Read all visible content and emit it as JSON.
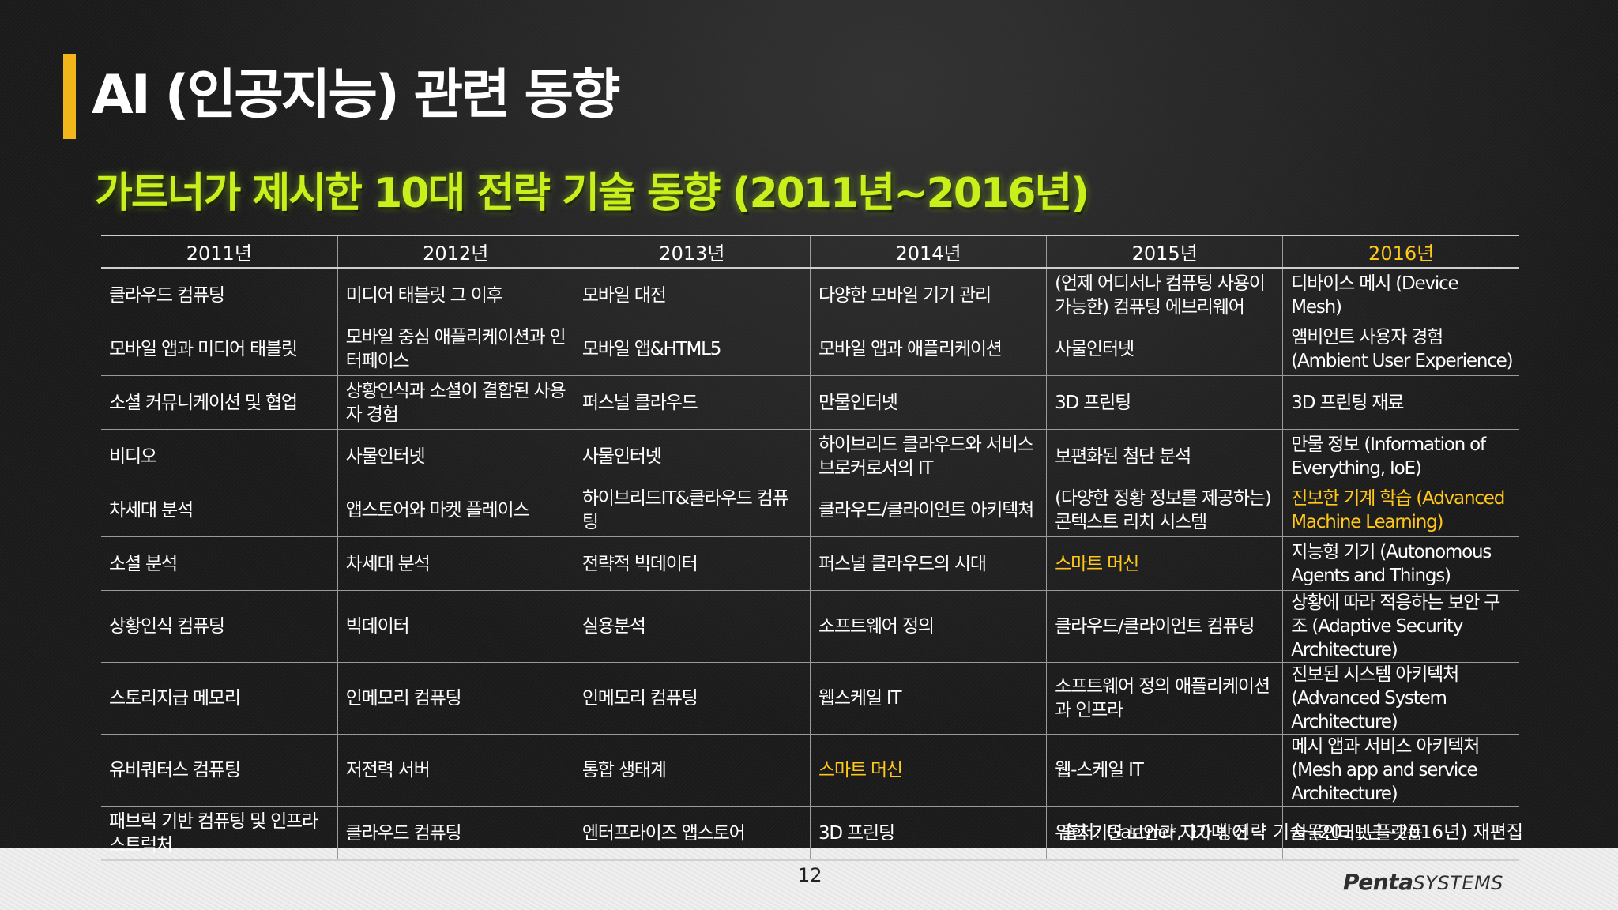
{
  "title": "AI (인공지능) 관련 동향",
  "subtitle": "가트너가 제시한 10대 전략 기술 동향 (2011년~2016년)",
  "colors": {
    "accent_bar": "#f2b51a",
    "subtitle": "#c9ef1c",
    "highlight": "#ffc81a"
  },
  "table": {
    "headers": [
      "2011년",
      "2012년",
      "2013년",
      "2014년",
      "2015년",
      "2016년"
    ],
    "rows": [
      [
        "클라우드 컴퓨팅",
        "미디어 태블릿 그 이후",
        "모바일 대전",
        "다양한 모바일 기기 관리",
        "(언제 어디서나 컴퓨팅 사용이 가능한) 컴퓨팅 에브리웨어",
        "디바이스 메시 (Device Mesh)"
      ],
      [
        "모바일 앱과 미디어 태블릿",
        "모바일 중심 애플리케이션과 인터페이스",
        "모바일 앱&HTML5",
        "모바일 앱과 애플리케이션",
        "사물인터넷",
        "앰비언트 사용자 경험 (Ambient User Experience)"
      ],
      [
        "소셜 커뮤니케이션 및 협업",
        "상황인식과 소셜이 결합된 사용자 경험",
        "퍼스널 클라우드",
        "만물인터넷",
        "3D 프린팅",
        "3D 프린팅 재료"
      ],
      [
        "비디오",
        "사물인터넷",
        "사물인터넷",
        "하이브리드 클라우드와 서비스 브로커로서의 IT",
        "보편화된 첨단 분석",
        "만물 정보 (Information of Everything, IoE)"
      ],
      [
        "차세대 분석",
        "앱스토어와 마켓 플레이스",
        "하이브리드IT&클라우드 컴퓨팅",
        "클라우드/클라이언트 아키텍쳐",
        "(다양한 정황 정보를 제공하는) 콘텍스트 리치 시스템",
        "진보한 기계 학습 (Advanced Machine Learning)"
      ],
      [
        "소셜 분석",
        "차세대 분석",
        "전략적 빅데이터",
        "퍼스널 클라우드의 시대",
        "스마트 머신",
        "지능형 기기 (Autonomous Agents and Things)"
      ],
      [
        "상황인식 컴퓨팅",
        "빅데이터",
        "실용분석",
        "소프트웨어 정의",
        "클라우드/클라이언트 컴퓨팅",
        "상황에 따라 적응하는 보안 구조 (Adaptive Security Architecture)"
      ],
      [
        "스토리지급 메모리",
        "인메모리 컴퓨팅",
        "인메모리 컴퓨팅",
        "웹스케일 IT",
        "소프트웨어 정의 애플리케이션과 인프라",
        "진보된 시스템 아키텍처 (Advanced System Architecture)"
      ],
      [
        "유비쿼터스 컴퓨팅",
        "저전력 서버",
        "통합 생태계",
        "스마트 머신",
        "웹-스케일 IT",
        "메시 앱과 서비스 아키텍처 (Mesh app and service Architecture)"
      ],
      [
        "패브릭 기반 컴퓨팅 및 인프라스트럭처",
        "클라우드 컴퓨팅",
        "엔터프라이즈 앱스토어",
        "3D 프린팅",
        "위험 기반 보안과 자가 방어",
        "사물인터넷 플랫폼"
      ]
    ]
  },
  "source": "출처: Gartner, 10대 전략 기술 (2011년~2016년) 재편집",
  "page_number": "12",
  "logo": {
    "brand": "Penta",
    "suffix": "SYSTEMS"
  }
}
